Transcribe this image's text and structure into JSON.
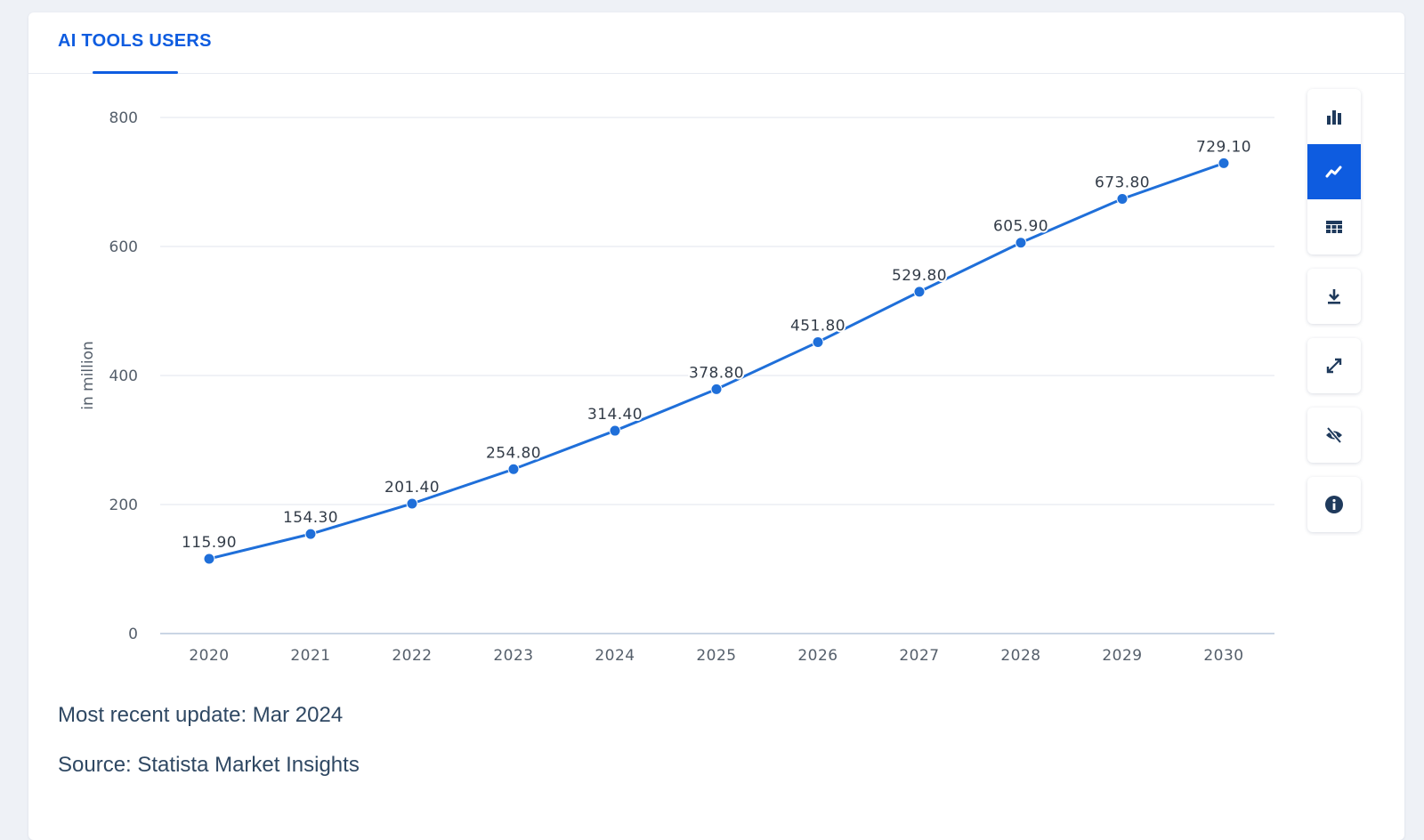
{
  "tab": {
    "label": "AI TOOLS USERS"
  },
  "toolbar": [
    {
      "name": "bar-chart-icon",
      "active": false
    },
    {
      "name": "line-chart-icon",
      "active": true
    },
    {
      "name": "table-icon",
      "active": false
    },
    {
      "name": "download-icon",
      "active": false
    },
    {
      "name": "fullscreen-icon",
      "active": false
    },
    {
      "name": "hide-icon",
      "active": false
    },
    {
      "name": "info-icon",
      "active": false
    }
  ],
  "footer": {
    "update": "Most recent update: Mar 2024",
    "source": "Source: Statista Market Insights"
  },
  "colors": {
    "accent": "#0e5ce0",
    "line": "#1f6fd9",
    "grid": "#e1e6ee",
    "axis": "#b8c7db",
    "text": "#333c48"
  },
  "chart_data": {
    "type": "line",
    "title": "AI TOOLS USERS",
    "xlabel": "",
    "ylabel": "in million",
    "categories": [
      "2020",
      "2021",
      "2022",
      "2023",
      "2024",
      "2025",
      "2026",
      "2027",
      "2028",
      "2029",
      "2030"
    ],
    "series": [
      {
        "name": "AI tools users",
        "values": [
          115.9,
          154.3,
          201.4,
          254.8,
          314.4,
          378.8,
          451.8,
          529.8,
          605.9,
          673.8,
          729.1
        ],
        "labels": [
          "115.90",
          "154.30",
          "201.40",
          "254.80",
          "314.40",
          "378.80",
          "451.80",
          "529.80",
          "605.90",
          "673.80",
          "729.10"
        ]
      }
    ],
    "yticks": [
      0,
      200,
      400,
      600,
      800
    ],
    "ylim": [
      0,
      800
    ],
    "grid": true
  }
}
